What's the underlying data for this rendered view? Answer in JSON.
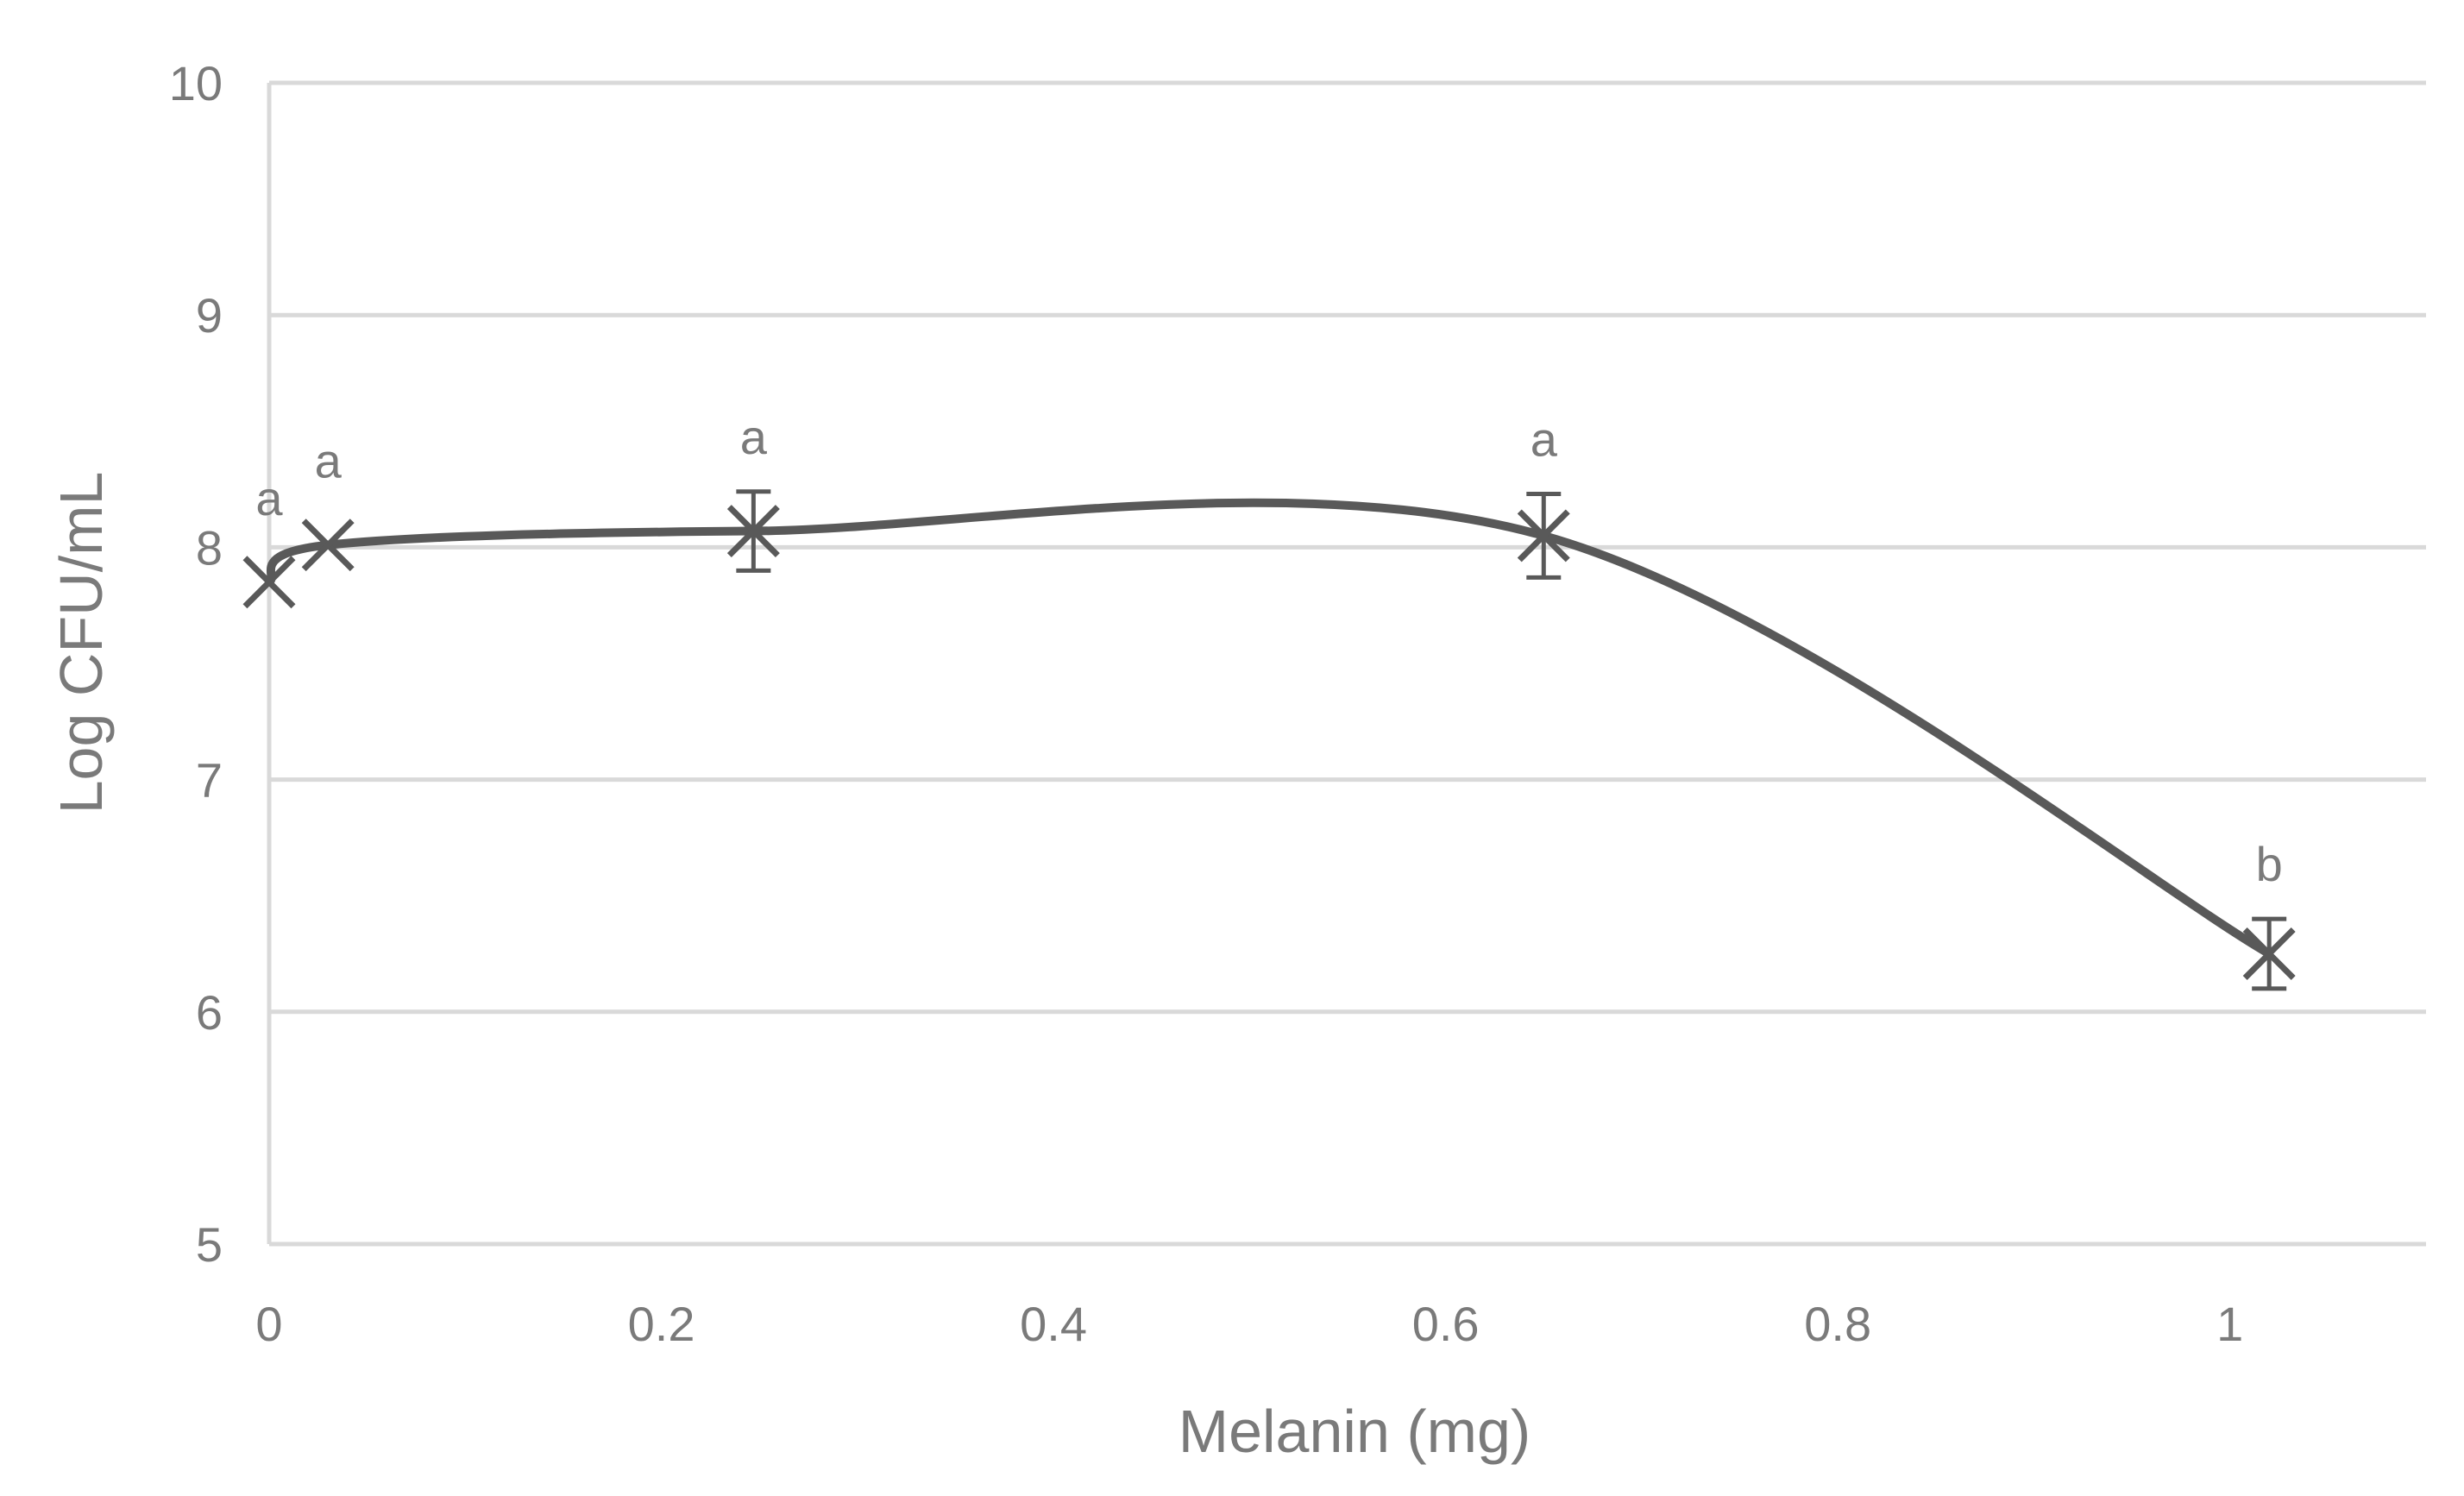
{
  "chart_data": {
    "type": "line",
    "title": "",
    "xlabel": "Melanin (mg)",
    "ylabel": "Log CFU/mL",
    "xlim": [
      0,
      1.1
    ],
    "ylim": [
      5,
      10
    ],
    "x_ticks": [
      {
        "value": 0,
        "label": "0"
      },
      {
        "value": 0.2,
        "label": "0.2"
      },
      {
        "value": 0.4,
        "label": "0.4"
      },
      {
        "value": 0.6,
        "label": "0.6"
      },
      {
        "value": 0.8,
        "label": "0.8"
      },
      {
        "value": 1,
        "label": "1"
      }
    ],
    "y_ticks": [
      {
        "value": 5,
        "label": "5"
      },
      {
        "value": 6,
        "label": "6"
      },
      {
        "value": 7,
        "label": "7"
      },
      {
        "value": 8,
        "label": "8"
      },
      {
        "value": 9,
        "label": "9"
      },
      {
        "value": 10,
        "label": "10"
      }
    ],
    "grid": true,
    "smooth": true,
    "series": [
      {
        "name": "Log CFU/mL",
        "color": "#595959",
        "marker": "star-x",
        "points": [
          {
            "x": 0,
            "y": 7.85,
            "error": 0,
            "label": "a"
          },
          {
            "x": 0.03,
            "y": 8.01,
            "error": 0,
            "label": "a"
          },
          {
            "x": 0.247,
            "y": 8.07,
            "error": 0.17,
            "label": "a"
          },
          {
            "x": 0.65,
            "y": 8.05,
            "error": 0.18,
            "label": "a"
          },
          {
            "x": 1.02,
            "y": 6.25,
            "error": 0.15,
            "label": "b"
          }
        ]
      }
    ]
  }
}
